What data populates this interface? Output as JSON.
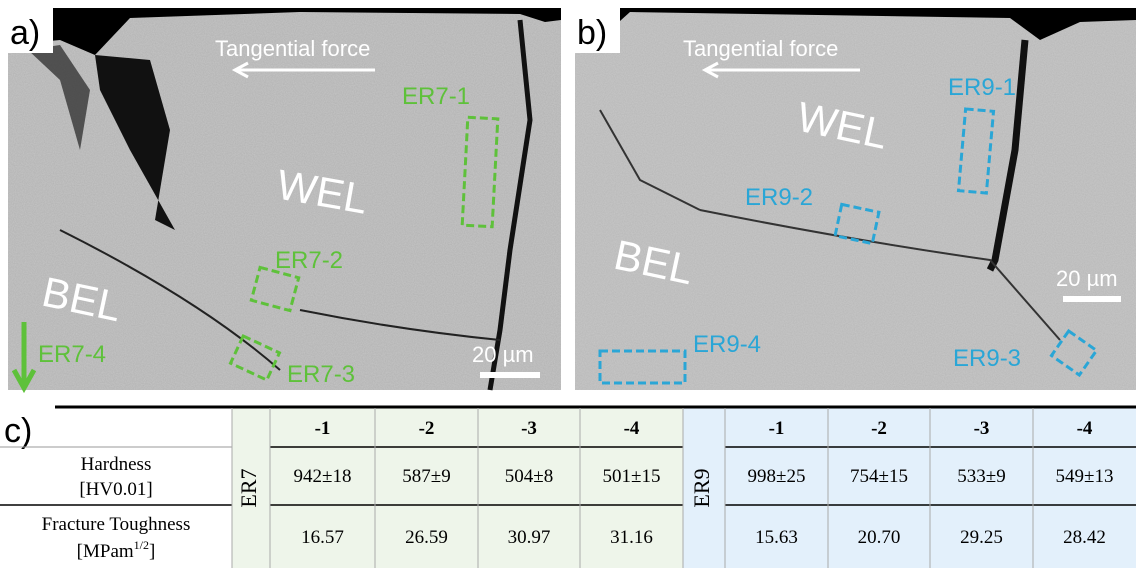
{
  "panel_a": {
    "label": "a)",
    "arrow_text": "Tangential force",
    "regions": [
      "WEL",
      "BEL"
    ],
    "boxes": [
      "ER7-1",
      "ER7-2",
      "ER7-3",
      "ER7-4"
    ],
    "scale": "20 µm"
  },
  "panel_b": {
    "label": "b)",
    "arrow_text": "Tangential force",
    "regions": [
      "WEL",
      "BEL"
    ],
    "boxes": [
      "ER9-1",
      "ER9-2",
      "ER9-3",
      "ER9-4"
    ],
    "scale": "20 µm"
  },
  "table": {
    "label": "c)",
    "groups": [
      "ER7",
      "ER9"
    ],
    "columns": [
      "-1",
      "-2",
      "-3",
      "-4",
      "-1",
      "-2",
      "-3",
      "-4"
    ],
    "rows": [
      {
        "name": "Hardness",
        "unit": [
          "[HV0.01]"
        ],
        "values": [
          "942±18",
          "587±9",
          "504±8",
          "501±15",
          "998±25",
          "754±15",
          "533±9",
          "549±13"
        ]
      },
      {
        "name": "Fracture Toughness",
        "unit": [
          "[MPam",
          "1/2",
          "]"
        ],
        "values": [
          "16.57",
          "26.59",
          "30.97",
          "31.16",
          "15.63",
          "20.70",
          "29.25",
          "28.42"
        ]
      }
    ]
  }
}
